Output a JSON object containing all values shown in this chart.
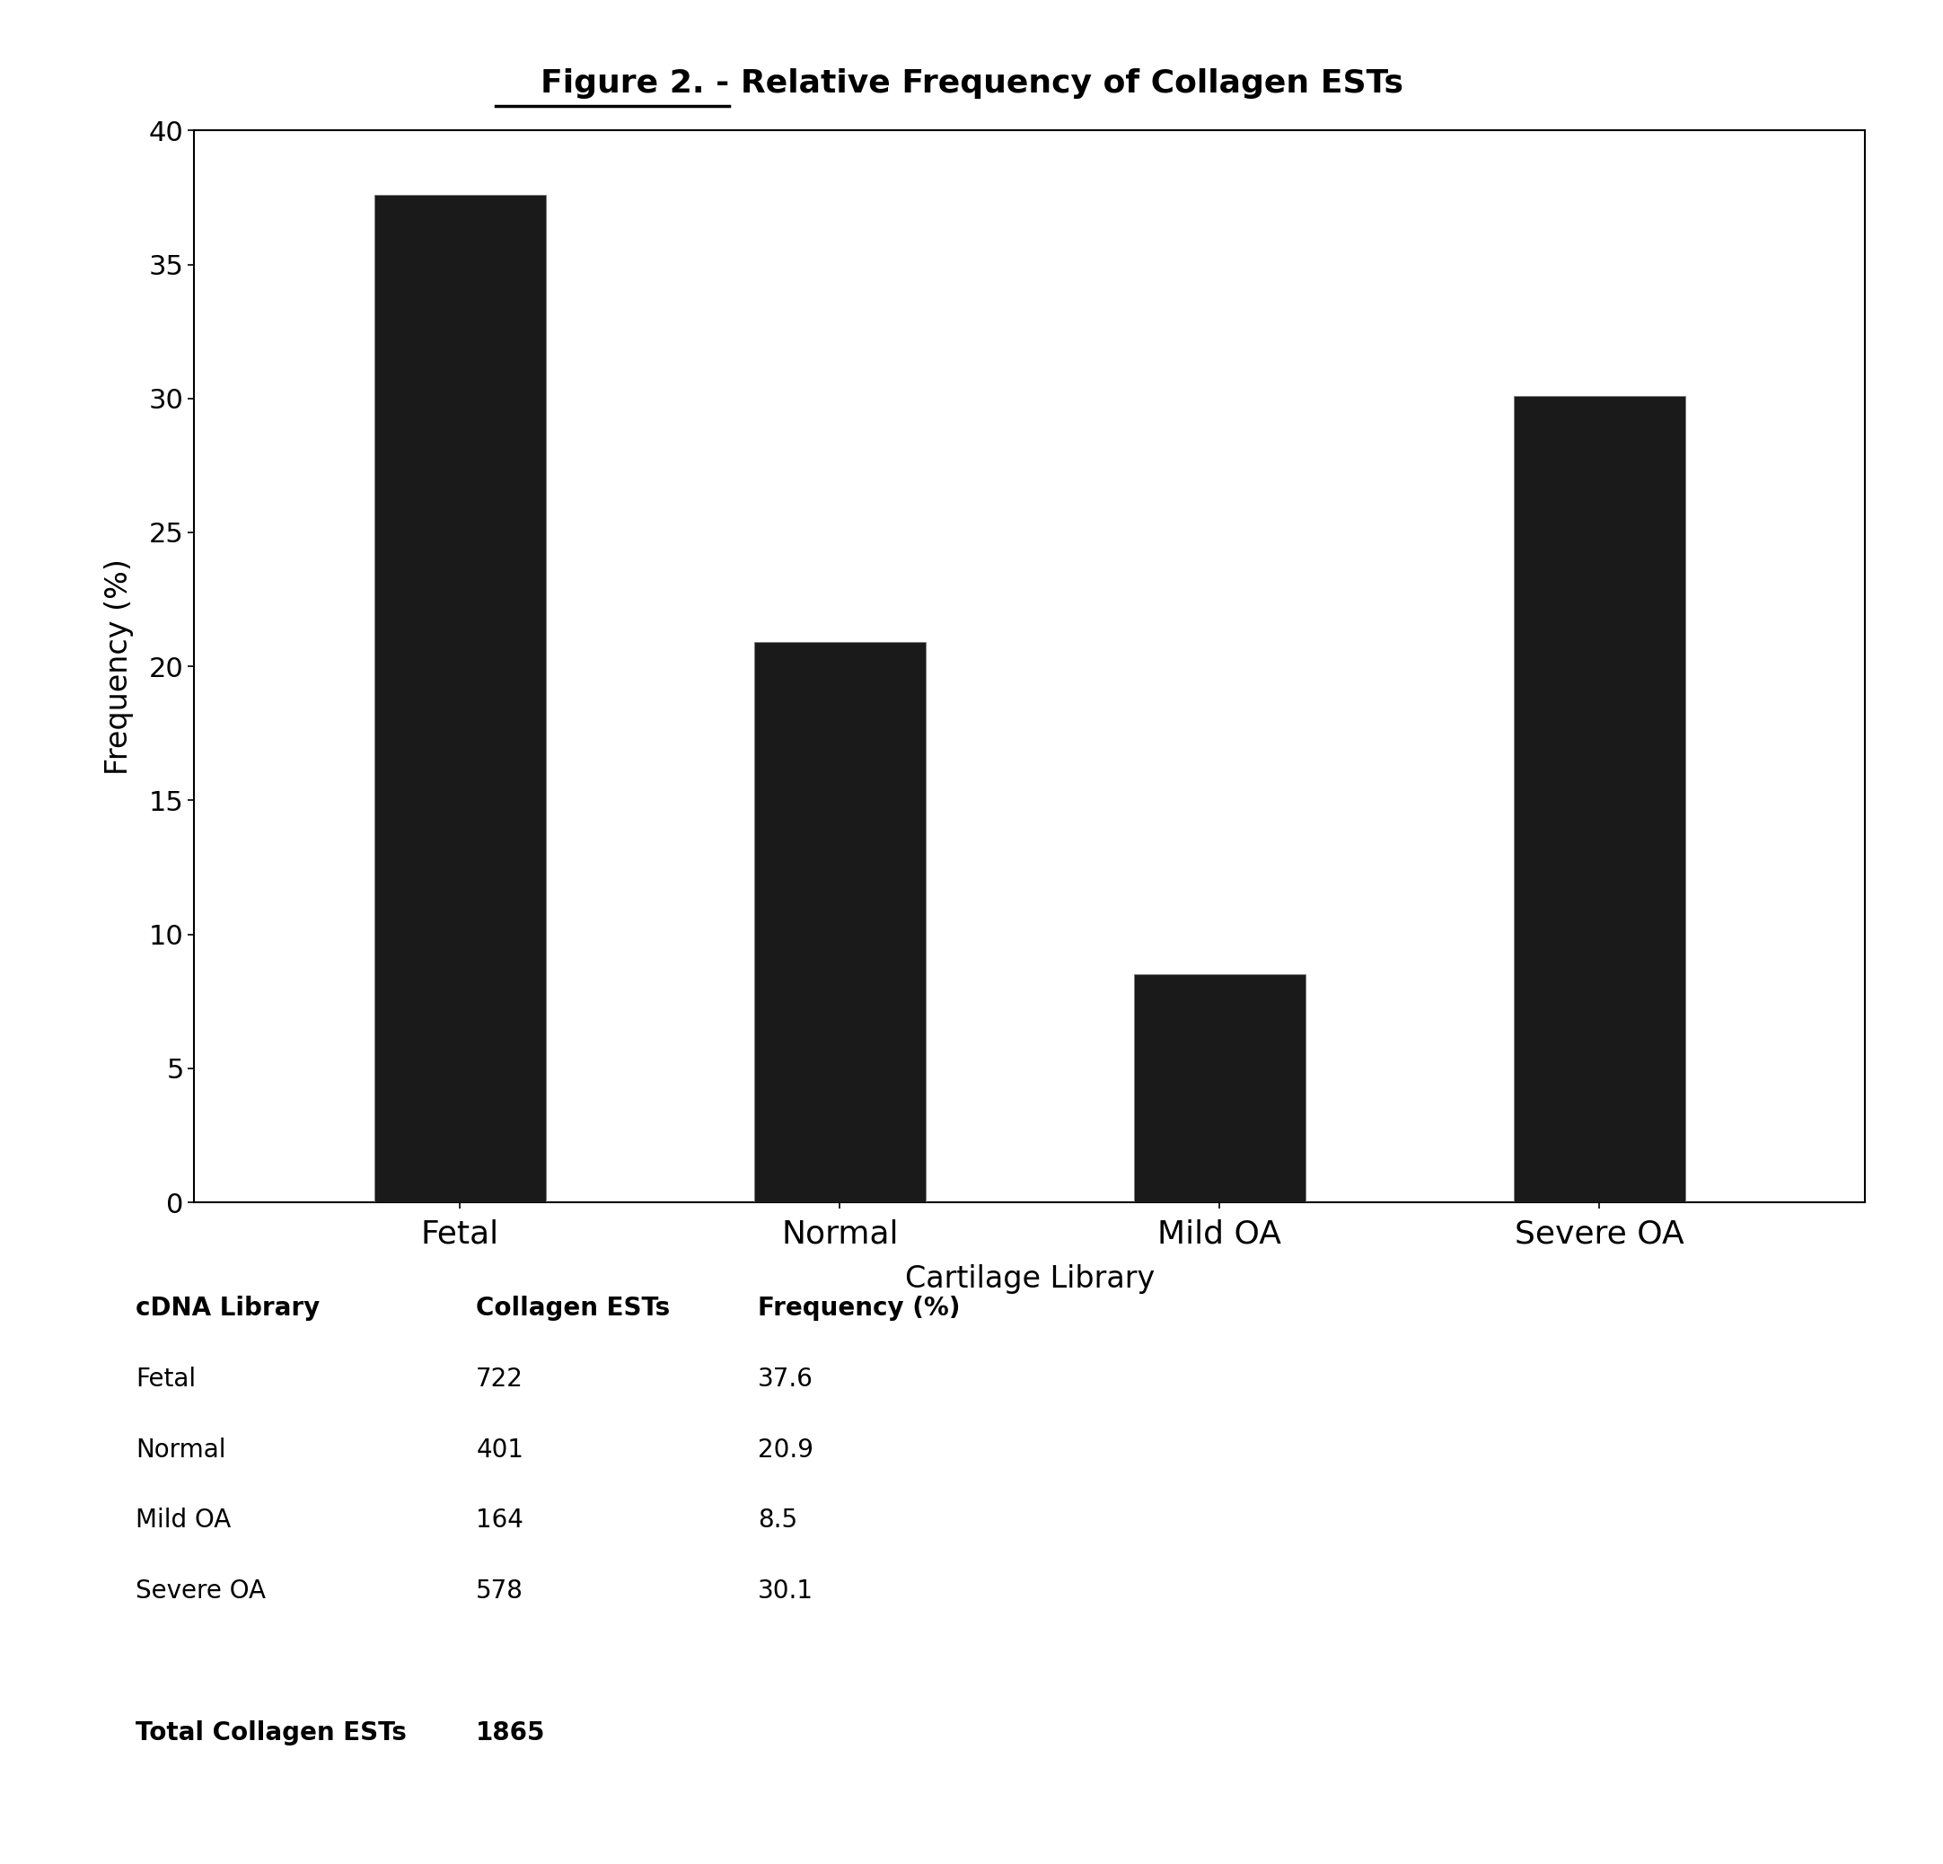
{
  "title_bold": "Figure 2.",
  "title_rest": " - Relative Frequency of Collagen ESTs",
  "categories": [
    "Fetal",
    "Normal",
    "Mild OA",
    "Severe OA"
  ],
  "values": [
    37.6,
    20.9,
    8.5,
    30.1
  ],
  "bar_color": "#111111",
  "bar_edge_color": "#000000",
  "xlabel": "Cartilage Library",
  "ylabel": "Frequency (%)",
  "ylim": [
    0,
    40
  ],
  "yticks": [
    0,
    5,
    10,
    15,
    20,
    25,
    30,
    35,
    40
  ],
  "background_color": "#ffffff",
  "plot_bg_color": "#ffffff",
  "title_fontsize": 26,
  "axis_label_fontsize": 24,
  "tick_fontsize": 22,
  "xtick_fontsize": 26,
  "table_header_row": [
    "cDNA Library",
    "Collagen ESTs",
    "Frequency (%)"
  ],
  "table_rows": [
    [
      "Fetal",
      "722",
      "37.6"
    ],
    [
      "Normal",
      "401",
      "20.9"
    ],
    [
      "Mild OA",
      "164",
      "8.5"
    ],
    [
      "Severe OA",
      "578",
      "30.1"
    ]
  ],
  "table_footer": [
    "Total Collagen ESTs",
    "1865",
    ""
  ],
  "table_fontsize": 20,
  "bar_width": 0.45
}
